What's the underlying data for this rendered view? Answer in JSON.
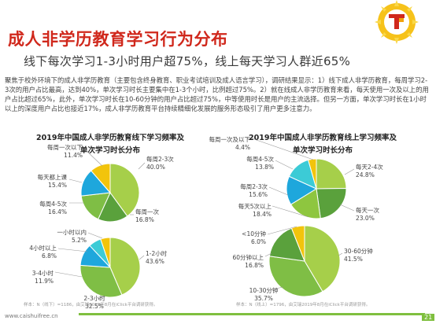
{
  "page": {
    "title": "成人非学历教育学习行为分布",
    "subtitle": "线下每次学习1-3小时用户超75%，线上每天学习人群近65%",
    "body": "聚焦于校外环境下的成人非学历教育（主要包含终身教育、职业考试培训及成人语言学习），调研结果显示：1）线下成人非学历教育，每周学习2-3次的用户占比最高，达到40%，单次学习时长主要集中在1-3个小时，比例超过75%。2）就在线成人非学历教育来看，每天使用一次及以上的用户占比超过65%，此外，单次学习时长在10-60分钟的用户占比超过75%，中等使用时长是用户的主流选择。但另一方面，单次学习时长在1小时以上的深度用户占比也接近17%，成人非学历教育平台持续精细化发展的服务形态吸引了用户更多注意力。",
    "footer_left": "样本：N（线下）=1186，由艾瑞2019年8月在iClick平台调研获得。",
    "footer_right": "样本：N（线上）=1796，由艾瑞2019年8月在iClick平台调研获得。",
    "page_number": "21",
    "watermark": "www.caishuifree.cn"
  },
  "chart_data": [
    {
      "type": "pie",
      "title": "2019年中国成人非学历教育线下学习频率及",
      "subtitle": "单次学习时长分布",
      "categories": [
        "每周2-3次",
        "每周一次",
        "每周4-5次",
        "每天都上课",
        "每周一次以下"
      ],
      "values": [
        40.0,
        16.8,
        16.4,
        15.4,
        11.4
      ],
      "labels": [
        "40.0%",
        "16.8%",
        "16.4%",
        "15.4%",
        "11.4%"
      ],
      "colors": [
        "#a6cf4a",
        "#5aa13c",
        "#7fbe45",
        "#1ea7dc",
        "#f2c40c"
      ]
    },
    {
      "type": "pie",
      "title": "2019年中国成人非学历教育线上学习频率及",
      "subtitle": "单次学习时长分布",
      "categories": [
        "每天2-4次",
        "每天一次",
        "每天5次以上",
        "每周2-3次",
        "每周4-5次",
        "每周一次及以下"
      ],
      "values": [
        24.8,
        23.0,
        18.4,
        15.6,
        13.8,
        4.4
      ],
      "labels": [
        "24.8%",
        "23.0%",
        "18.4%",
        "15.6%",
        "13.8%",
        "4.4%"
      ],
      "colors": [
        "#a6cf4a",
        "#5aa13c",
        "#8ec63f",
        "#1ea7dc",
        "#3ccbd6",
        "#f2c40c"
      ]
    },
    {
      "type": "pie",
      "categories": [
        "1-2小时",
        "2-3小时",
        "3-4小时",
        "4小时以上",
        "一小时以内"
      ],
      "values": [
        43.6,
        32.5,
        11.9,
        6.8,
        5.2
      ],
      "labels": [
        "43.6%",
        "32.5%",
        "11.9%",
        "6.8%",
        "5.2%"
      ],
      "colors": [
        "#a6cf4a",
        "#7fbe45",
        "#1ea7dc",
        "#3ccbd6",
        "#f2c40c"
      ]
    },
    {
      "type": "pie",
      "categories": [
        "30-60分钟",
        "10-30分钟",
        "60分钟以上",
        "<10分钟"
      ],
      "values": [
        41.5,
        35.7,
        16.8,
        6.0
      ],
      "labels": [
        "41.5%",
        "35.7%",
        "16.8%",
        "6.0%"
      ],
      "colors": [
        "#a6cf4a",
        "#7fbe45",
        "#5aa13c",
        "#f2c40c"
      ]
    }
  ],
  "colors": {
    "title": "#d0281c",
    "accent": "#7fbf3f"
  },
  "logo": {
    "icon": "iresearch-logo-icon"
  }
}
